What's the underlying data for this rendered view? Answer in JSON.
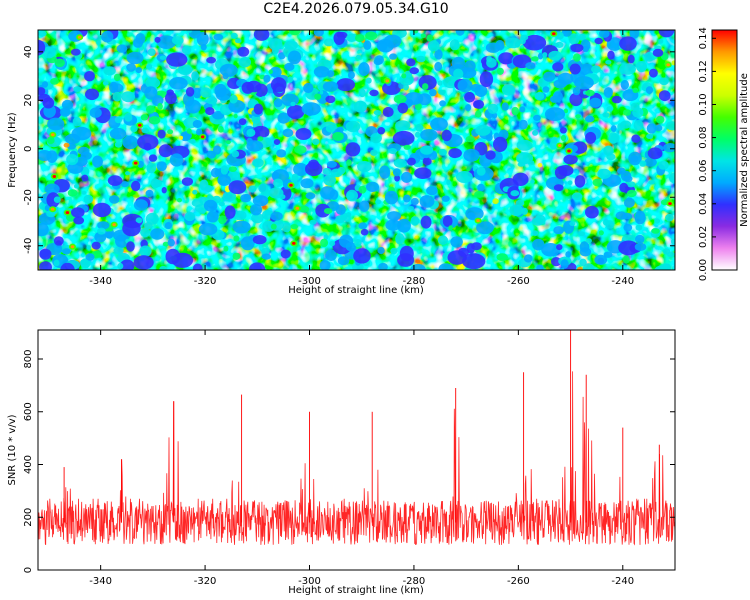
{
  "title": "C2E4.2026.079.05.34.G10",
  "chart_data": [
    {
      "type": "heatmap",
      "title": "C2E4.2026.079.05.34.G10",
      "xlabel": "Height of straight line (km)",
      "ylabel": "Frequency (Hz)",
      "xlim": [
        -352,
        -230
      ],
      "ylim": [
        -50,
        49
      ],
      "xticks": [
        "-340",
        "-320",
        "-300",
        "-280",
        "-260",
        "-240"
      ],
      "yticks": [
        "40",
        "20",
        "0",
        "-20",
        "-40"
      ],
      "colorbar": {
        "label": "Normalized spectral amplitude",
        "range": [
          0.0,
          0.145
        ],
        "ticks": [
          "0.00",
          "0.02",
          "0.04",
          "0.06",
          "0.08",
          "0.10",
          "0.12",
          "0.14"
        ],
        "colors": [
          "#ffffff",
          "#ee82ee",
          "#8a2be2",
          "#3030ff",
          "#00aaff",
          "#00e5e5",
          "#00ff66",
          "#44ff00",
          "#ccff00",
          "#ffff00",
          "#ff9900",
          "#ff0000"
        ]
      },
      "values_note": "noise-like spectrogram, amplitudes mostly 0.00-0.06 with scattered peaks up to ~0.14"
    },
    {
      "type": "line",
      "xlabel": "Height of straight line (km)",
      "ylabel": "SNR (10 * v/v)",
      "xlim": [
        -352,
        -230
      ],
      "ylim": [
        0,
        910
      ],
      "xticks": [
        "-340",
        "-320",
        "-300",
        "-280",
        "-260",
        "-240"
      ],
      "yticks": [
        "0",
        "200",
        "400",
        "600",
        "800"
      ],
      "series": [
        {
          "name": "SNR",
          "color": "#ff0000",
          "baseline": 180,
          "peaks": [
            {
              "x": -347,
              "y": 390
            },
            {
              "x": -336,
              "y": 420
            },
            {
              "x": -326,
              "y": 640
            },
            {
              "x": -313,
              "y": 665
            },
            {
              "x": -300,
              "y": 600
            },
            {
              "x": -288,
              "y": 600
            },
            {
              "x": -272,
              "y": 690
            },
            {
              "x": -259,
              "y": 750
            },
            {
              "x": -250,
              "y": 910
            },
            {
              "x": -247,
              "y": 740
            },
            {
              "x": -240,
              "y": 540
            },
            {
              "x": -233,
              "y": 475
            }
          ]
        }
      ]
    }
  ]
}
